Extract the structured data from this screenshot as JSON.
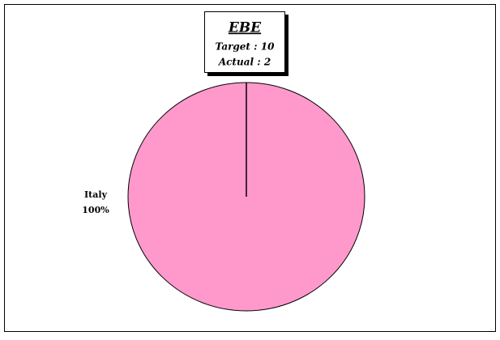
{
  "chart_data": {
    "type": "pie",
    "title": "EBE",
    "annotations": [
      "Target : 10",
      "Actual : 2"
    ],
    "categories": [
      "Italy"
    ],
    "values": [
      100
    ],
    "value_labels": [
      "100%"
    ],
    "colors": [
      "#ff99cc"
    ]
  }
}
